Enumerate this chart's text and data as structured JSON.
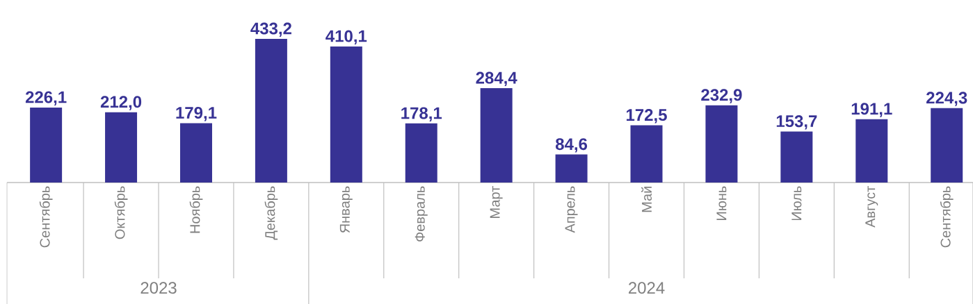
{
  "chart_data": {
    "type": "bar",
    "categories": [
      "Сентябрь",
      "Октябрь",
      "Ноябрь",
      "Декабрь",
      "Январь",
      "Февраль",
      "Март",
      "Апрель",
      "Май",
      "Июнь",
      "Июль",
      "Август",
      "Сентябрь"
    ],
    "values": [
      226.1,
      212.0,
      179.1,
      433.2,
      410.1,
      178.1,
      284.4,
      84.6,
      172.5,
      232.9,
      153.7,
      191.1,
      224.3
    ],
    "value_labels": [
      "226,1",
      "212,0",
      "179,1",
      "433,2",
      "410,1",
      "178,1",
      "284,4",
      "84,6",
      "172,5",
      "232,9",
      "153,7",
      "191,1",
      "224,3"
    ],
    "color": "#373294",
    "annotations": [
      "2023",
      "2024"
    ],
    "legend": false
  }
}
